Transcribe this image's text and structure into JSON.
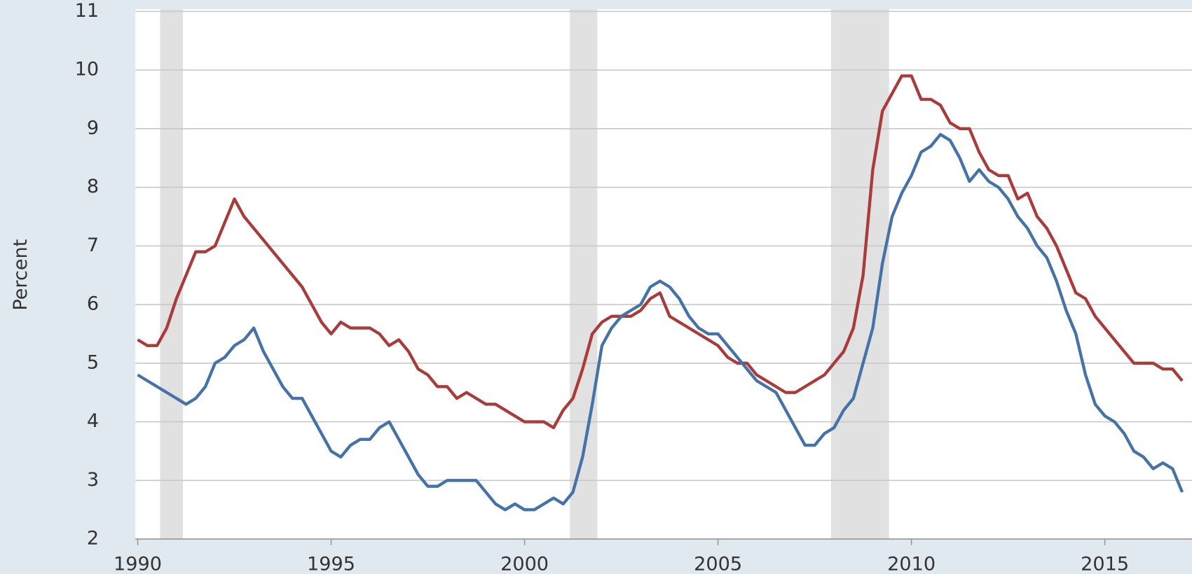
{
  "chart_data": {
    "type": "line",
    "y_label": "Percent",
    "x": [
      1990,
      1990.25,
      1990.5,
      1990.75,
      1991,
      1991.25,
      1991.5,
      1991.75,
      1992,
      1992.25,
      1992.5,
      1992.75,
      1993,
      1993.25,
      1993.5,
      1993.75,
      1994,
      1994.25,
      1994.5,
      1994.75,
      1995,
      1995.25,
      1995.5,
      1995.75,
      1996,
      1996.25,
      1996.5,
      1996.75,
      1997,
      1997.25,
      1997.5,
      1997.75,
      1998,
      1998.25,
      1998.5,
      1998.75,
      1999,
      1999.25,
      1999.5,
      1999.75,
      2000,
      2000.25,
      2000.5,
      2000.75,
      2001,
      2001.25,
      2001.5,
      2001.75,
      2002,
      2002.25,
      2002.5,
      2002.75,
      2003,
      2003.25,
      2003.5,
      2003.75,
      2004,
      2004.25,
      2004.5,
      2004.75,
      2005,
      2005.25,
      2005.5,
      2005.75,
      2006,
      2006.25,
      2006.5,
      2006.75,
      2007,
      2007.25,
      2007.5,
      2007.75,
      2008,
      2008.25,
      2008.5,
      2008.75,
      2009,
      2009.25,
      2009.5,
      2009.75,
      2010,
      2010.25,
      2010.5,
      2010.75,
      2011,
      2011.25,
      2011.5,
      2011.75,
      2012,
      2012.25,
      2012.5,
      2012.75,
      2013,
      2013.25,
      2013.5,
      2013.75,
      2014,
      2014.25,
      2014.5,
      2014.75,
      2015,
      2015.25,
      2015.5,
      2015.75,
      2016,
      2016.25,
      2016.5,
      2016.75,
      2017
    ],
    "series": [
      {
        "color": "#aa3b3b",
        "values": [
          5.4,
          5.3,
          5.3,
          5.6,
          6.1,
          6.5,
          6.9,
          6.9,
          7.0,
          7.4,
          7.8,
          7.5,
          7.3,
          7.1,
          6.9,
          6.7,
          6.5,
          6.3,
          6.0,
          5.7,
          5.5,
          5.7,
          5.6,
          5.6,
          5.6,
          5.5,
          5.3,
          5.4,
          5.2,
          4.9,
          4.8,
          4.6,
          4.6,
          4.4,
          4.5,
          4.4,
          4.3,
          4.3,
          4.2,
          4.1,
          4.0,
          4.0,
          4.0,
          3.9,
          4.2,
          4.4,
          4.9,
          5.5,
          5.7,
          5.8,
          5.8,
          5.8,
          5.9,
          6.1,
          6.2,
          5.8,
          5.7,
          5.6,
          5.5,
          5.4,
          5.3,
          5.1,
          5.0,
          5.0,
          4.8,
          4.7,
          4.6,
          4.5,
          4.5,
          4.6,
          4.7,
          4.8,
          5.0,
          5.2,
          5.6,
          6.5,
          8.3,
          9.3,
          9.6,
          9.9,
          9.9,
          9.5,
          9.5,
          9.4,
          9.1,
          9.0,
          9.0,
          8.6,
          8.3,
          8.2,
          8.2,
          7.8,
          7.9,
          7.5,
          7.3,
          7.0,
          6.6,
          6.2,
          6.1,
          5.8,
          5.6,
          5.4,
          5.2,
          5.0,
          5.0,
          5.0,
          4.9,
          4.9,
          4.7
        ]
      },
      {
        "color": "#4572a7",
        "values": [
          4.8,
          4.7,
          4.6,
          4.5,
          4.4,
          4.3,
          4.4,
          4.6,
          5.0,
          5.1,
          5.3,
          5.4,
          5.6,
          5.2,
          4.9,
          4.6,
          4.4,
          4.4,
          4.1,
          3.8,
          3.5,
          3.4,
          3.6,
          3.7,
          3.7,
          3.9,
          4.0,
          3.7,
          3.4,
          3.1,
          2.9,
          2.9,
          3.0,
          3.0,
          3.0,
          3.0,
          2.8,
          2.6,
          2.5,
          2.6,
          2.5,
          2.5,
          2.6,
          2.7,
          2.6,
          2.8,
          3.4,
          4.3,
          5.3,
          5.6,
          5.8,
          5.9,
          6.0,
          6.3,
          6.4,
          6.3,
          6.1,
          5.8,
          5.6,
          5.5,
          5.5,
          5.3,
          5.1,
          4.9,
          4.7,
          4.6,
          4.5,
          4.2,
          3.9,
          3.6,
          3.6,
          3.8,
          3.9,
          4.2,
          4.4,
          5.0,
          5.6,
          6.7,
          7.5,
          7.9,
          8.2,
          8.6,
          8.7,
          8.9,
          8.8,
          8.5,
          8.1,
          8.3,
          8.1,
          8.0,
          7.8,
          7.5,
          7.3,
          7.0,
          6.8,
          6.4,
          5.9,
          5.5,
          4.8,
          4.3,
          4.1,
          4.0,
          3.8,
          3.5,
          3.4,
          3.2,
          3.3,
          3.2,
          2.8
        ]
      }
    ],
    "recessions": [
      [
        1990.58,
        1991.17
      ],
      [
        2001.17,
        2001.88
      ],
      [
        2007.92,
        2009.42
      ]
    ],
    "recession_color": "#e1e1e1",
    "xlim": [
      1989.94,
      2017.25
    ],
    "xticks": [
      1990,
      1995,
      2000,
      2005,
      2010,
      2015
    ],
    "ylim": [
      2,
      11
    ],
    "yticks": [
      2,
      3,
      4,
      5,
      6,
      7,
      8,
      9,
      10,
      11
    ],
    "grid": true
  }
}
